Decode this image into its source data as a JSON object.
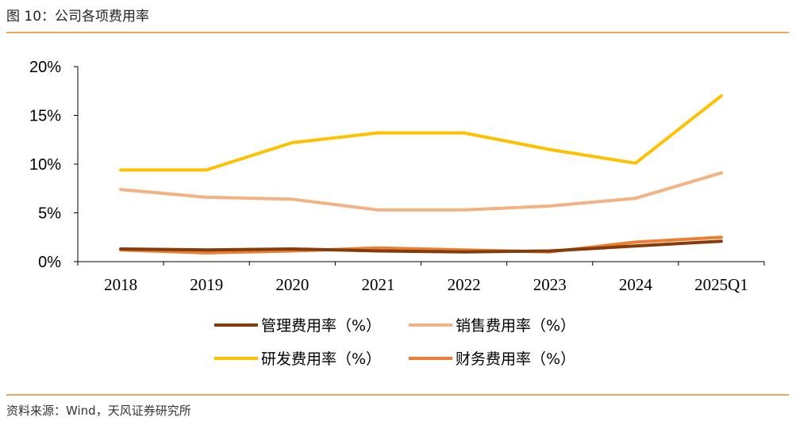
{
  "header": {
    "title": "图 10：公司各项费用率"
  },
  "footer": {
    "source": "资料来源：Wind，天风证券研究所"
  },
  "chart_data": {
    "type": "line",
    "title": "",
    "xlabel": "",
    "ylabel": "",
    "x": [
      "2018",
      "2019",
      "2020",
      "2021",
      "2022",
      "2023",
      "2024",
      "2025Q1"
    ],
    "ylim": [
      0,
      20
    ],
    "yticks": [
      0,
      5,
      10,
      15,
      20
    ],
    "ytick_labels": [
      "0%",
      "5%",
      "10%",
      "15%",
      "20%"
    ],
    "grid": false,
    "legend_position": "bottom",
    "series": [
      {
        "name": "管理费用率（%）",
        "color": "#843c0c",
        "values": [
          1.3,
          1.2,
          1.3,
          1.1,
          1.0,
          1.1,
          1.6,
          2.1
        ]
      },
      {
        "name": "销售费用率（%）",
        "color": "#f4b183",
        "values": [
          7.4,
          6.6,
          6.4,
          5.3,
          5.3,
          5.7,
          6.5,
          9.1
        ]
      },
      {
        "name": "研发费用率（%）",
        "color": "#ffc000",
        "values": [
          9.4,
          9.4,
          12.2,
          13.2,
          13.2,
          11.5,
          10.1,
          17.0
        ]
      },
      {
        "name": "财务费用率（%）",
        "color": "#ed7d31",
        "values": [
          1.2,
          0.9,
          1.1,
          1.4,
          1.2,
          1.0,
          2.0,
          2.5
        ]
      }
    ]
  }
}
